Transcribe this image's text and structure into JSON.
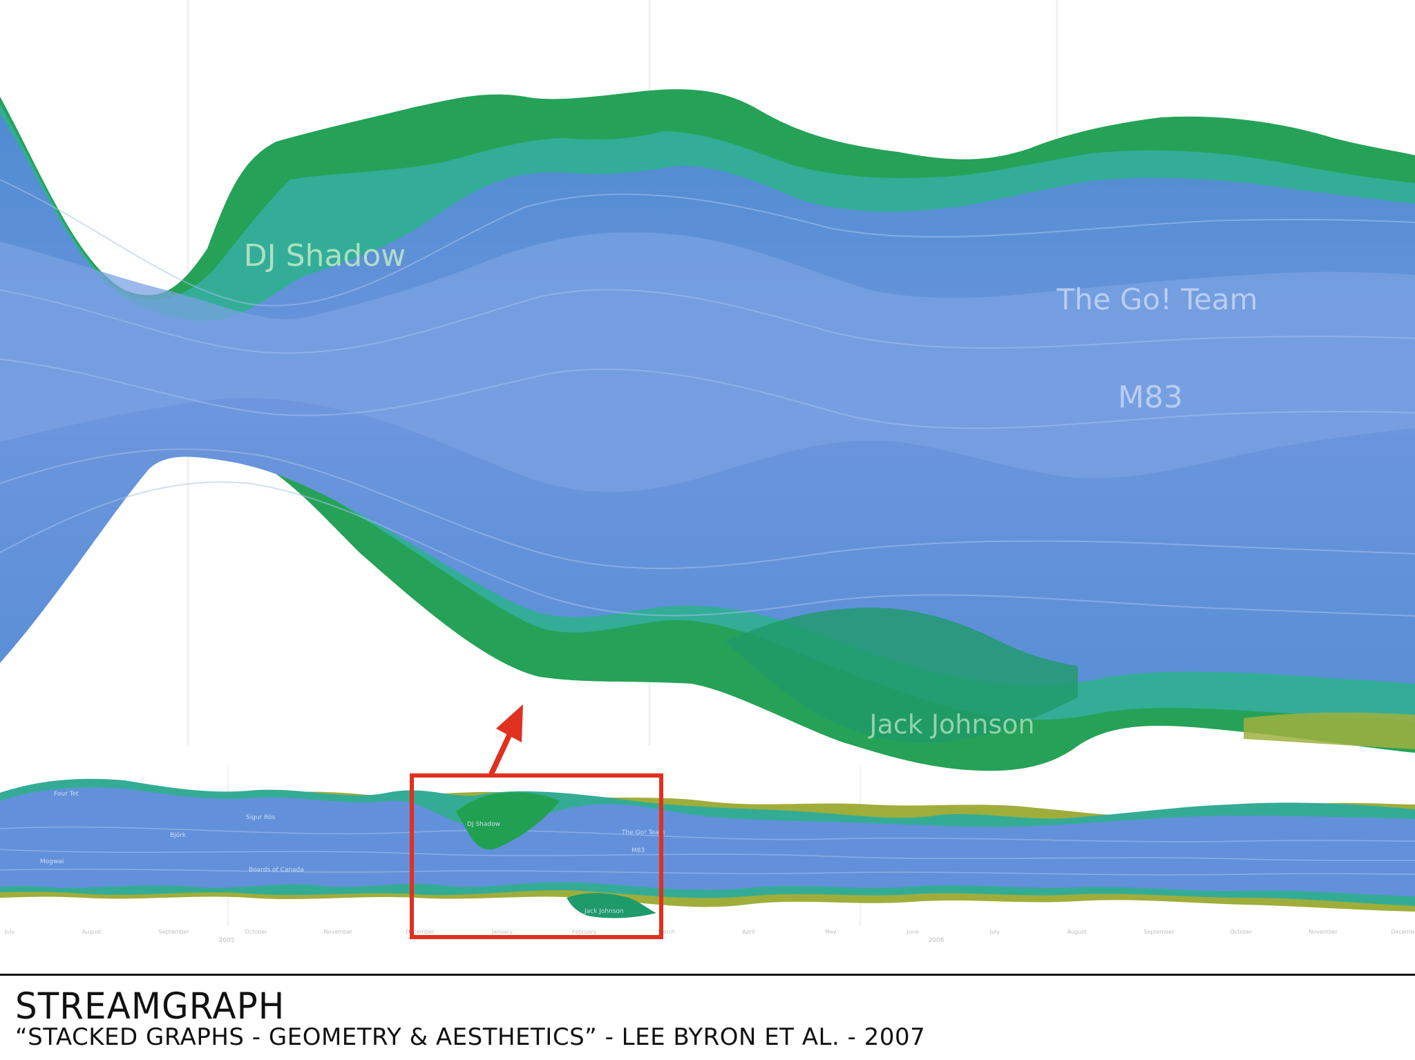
{
  "caption": {
    "title": "STREAMGRAPH",
    "subtitle": "“STACKED GRAPHS - GEOMETRY & AESTHETICS” - LEE BYRON ET AL. - 2007"
  },
  "chart_data": [
    {
      "type": "area",
      "view": "zoomed-detail",
      "labels": [
        "DJ Shadow",
        "The Go! Team",
        "M83",
        "Jack Johnson"
      ],
      "colors": {
        "green": "#20a050",
        "teal": "#2fa98e",
        "blue": "#5b8fd6",
        "light_blue": "#7ea3e0",
        "olive": "#9fae3a"
      }
    },
    {
      "type": "area",
      "view": "overview",
      "labels": [
        "Four Tet",
        "Sigur Rós",
        "Björk",
        "Mogwai",
        "Boards of Canada",
        "DJ Shadow",
        "The Go! Team",
        "M83",
        "Jack Johnson"
      ],
      "x_ticks": [
        "July",
        "August",
        "September",
        "October",
        "November",
        "December",
        "January",
        "February",
        "March",
        "April",
        "May",
        "June",
        "July",
        "August",
        "September",
        "October",
        "November",
        "December"
      ],
      "year_labels": [
        "2005",
        "2006"
      ],
      "highlight": {
        "color": "#e03020"
      }
    }
  ]
}
